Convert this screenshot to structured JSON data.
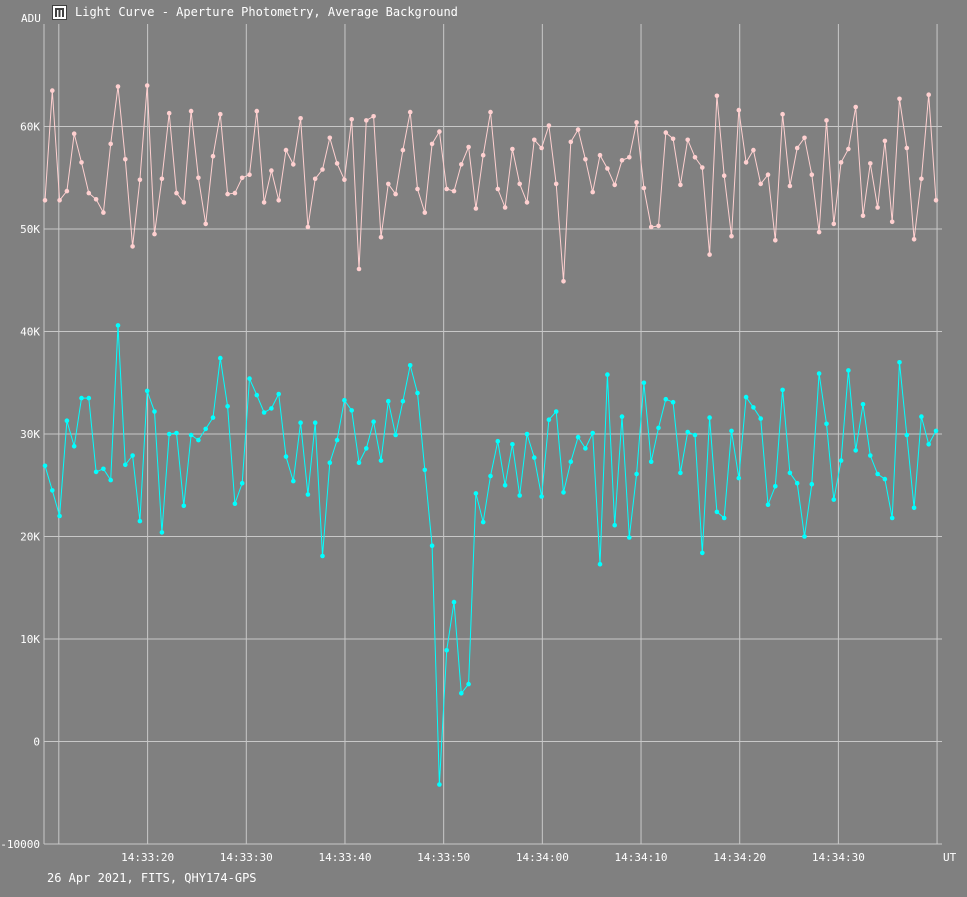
{
  "window": {
    "title": "Light Curve - Aperture Photometry, Average Background",
    "icon": "light-curve-app-icon"
  },
  "footer": {
    "info": "26 Apr 2021, FITS, QHY174-GPS"
  },
  "colors": {
    "background": "#808080",
    "grid": "#c8c8c8",
    "text": "#ffffff",
    "series_background": "#ffd0d0",
    "series_target": "#00ffff"
  },
  "chart_data": {
    "type": "line",
    "ylabel": "ADU",
    "xlabel": "UT",
    "ylim": [
      -10000,
      70000
    ],
    "grid": true,
    "y_ticks": [
      -10000,
      0,
      10000,
      20000,
      30000,
      40000,
      50000,
      60000
    ],
    "y_tick_labels": [
      "-10000",
      "0",
      "10K",
      "20K",
      "30K",
      "40K",
      "50K",
      "60K"
    ],
    "x_ticks": [
      {
        "t": 20,
        "label": "14:33:20"
      },
      {
        "t": 30,
        "label": "14:33:30"
      },
      {
        "t": 40,
        "label": "14:33:40"
      },
      {
        "t": 50,
        "label": "14:33:50"
      },
      {
        "t": 60,
        "label": "14:34:00"
      },
      {
        "t": 70,
        "label": "14:34:10"
      },
      {
        "t": 80,
        "label": "14:34:20"
      },
      {
        "t": 90,
        "label": "14:34:30"
      }
    ],
    "x_minor_grid": [
      11,
      100
    ],
    "x_range": [
      9.5,
      100.5
    ],
    "series": [
      {
        "color": "#ffd0d0",
        "values": [
          52800,
          63500,
          52800,
          53700,
          59300,
          56500,
          53500,
          52900,
          51600,
          58300,
          63900,
          56800,
          48300,
          54800,
          64000,
          49500,
          54900,
          61300,
          53500,
          52600,
          61500,
          55000,
          50500,
          57100,
          61200,
          53400,
          53500,
          55000,
          55300,
          61500,
          52600,
          55700,
          52800,
          57700,
          56300,
          60800,
          50200,
          54900,
          55800,
          58900,
          56400,
          54800,
          60700,
          46100,
          60600,
          61000,
          49200,
          54400,
          53400,
          57700,
          61400,
          53900,
          51600,
          58300,
          59500,
          53900,
          53700,
          56300,
          58000,
          52000,
          57200,
          61400,
          53900,
          52100,
          57800,
          54400,
          52600,
          58700,
          57900,
          60100,
          54400,
          44900,
          58500,
          59700,
          56800,
          53600,
          57200,
          55900,
          54300,
          56700,
          57000,
          60400,
          54000,
          50200,
          50300,
          59400,
          58800,
          54300,
          58700,
          57000,
          56000,
          47500,
          63000,
          55200,
          49300,
          61600,
          56500,
          57700,
          54400,
          55300,
          48900,
          61200,
          54200,
          57900,
          58900,
          55300,
          49700,
          60600,
          50500,
          56500,
          57800,
          61900,
          51300,
          56400,
          52100,
          58600,
          50700,
          62700,
          57900,
          49000,
          54900,
          63100,
          52800
        ]
      },
      {
        "color": "#00ffff",
        "values": [
          26900,
          24500,
          22000,
          31300,
          28800,
          33500,
          33500,
          26300,
          26600,
          25500,
          40600,
          27000,
          27900,
          21500,
          34200,
          32200,
          20400,
          30000,
          30100,
          23000,
          29900,
          29400,
          30500,
          31600,
          37400,
          32700,
          23200,
          25200,
          35400,
          33800,
          32100,
          32500,
          33900,
          27800,
          25400,
          31100,
          24100,
          31100,
          18100,
          27200,
          29400,
          33300,
          32300,
          27200,
          28600,
          31200,
          27400,
          33200,
          29900,
          33200,
          36700,
          34000,
          26500,
          19100,
          -4200,
          8900,
          13600,
          4700,
          5600,
          24200,
          21400,
          25900,
          29300,
          25000,
          29000,
          24000,
          30000,
          27700,
          23900,
          31400,
          32200,
          24300,
          27300,
          29700,
          28600,
          30100,
          17300,
          35800,
          21100,
          31700,
          19900,
          26100,
          35000,
          27300,
          30600,
          33400,
          33100,
          26200,
          30200,
          29900,
          18400,
          31600,
          22400,
          21800,
          30300,
          25700,
          33600,
          32600,
          31500,
          23100,
          24900,
          34300,
          26200,
          25200,
          20000,
          25100,
          35900,
          31000,
          23600,
          27400,
          36200,
          28400,
          32900,
          27900,
          26100,
          25600,
          21800,
          37000,
          29900,
          22800,
          31700,
          29000,
          30300
        ]
      }
    ]
  }
}
